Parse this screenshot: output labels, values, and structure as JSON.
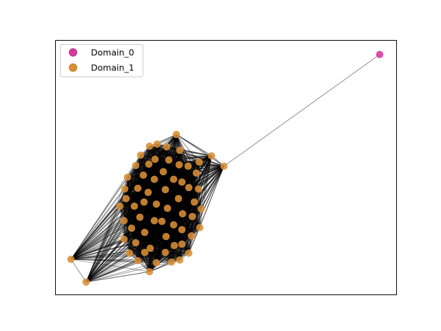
{
  "legend": {
    "items": [
      {
        "label": "Domain_0",
        "color": "#d63a9c",
        "edge": "#b82a82"
      },
      {
        "label": "Domain_1",
        "color": "#d99035",
        "edge": "#bf7a22"
      }
    ]
  },
  "graph": {
    "node_colors": {
      "Domain_0": "#d63a9c",
      "Domain_1": "#d99035"
    },
    "edge_color": "#000000"
  }
}
